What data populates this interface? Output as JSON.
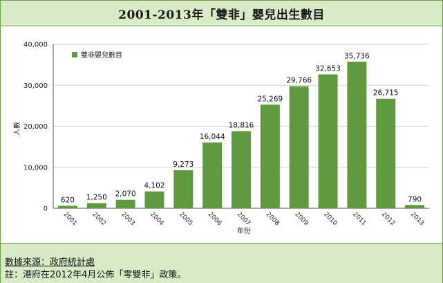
{
  "title": "2001-2013年「雙非」嬰兒出生數目",
  "chart_data": {
    "type": "bar",
    "categories": [
      "2001",
      "2002",
      "2003",
      "2004",
      "2005",
      "2006",
      "2007",
      "2008",
      "2009",
      "2010",
      "2011",
      "2012",
      "2013"
    ],
    "series": [
      {
        "name": "雙非嬰兒數目",
        "values": [
          620,
          1250,
          2070,
          4102,
          9273,
          16044,
          18816,
          25269,
          29766,
          32653,
          35736,
          26715,
          790
        ]
      }
    ],
    "value_labels": [
      "620",
      "1,250",
      "2,070",
      "4,102",
      "9,273",
      "16,044",
      "18,816",
      "25,269",
      "29,766",
      "32,653",
      "35,736",
      "26,715",
      "790"
    ],
    "y_ticks": [
      0,
      10000,
      20000,
      30000,
      40000
    ],
    "y_tick_labels": [
      "0",
      "10,000",
      "20,000",
      "30,000",
      "40,000"
    ],
    "ylim": [
      0,
      40000
    ],
    "xlabel": "年份",
    "ylabel": "人數",
    "legend_position": "top-left",
    "grid": true,
    "bar_color": "#5f9a41"
  },
  "footer": {
    "source": "數據來源：政府統計處",
    "note": "註：港府在2012年4月公佈「零雙非」政策。"
  }
}
